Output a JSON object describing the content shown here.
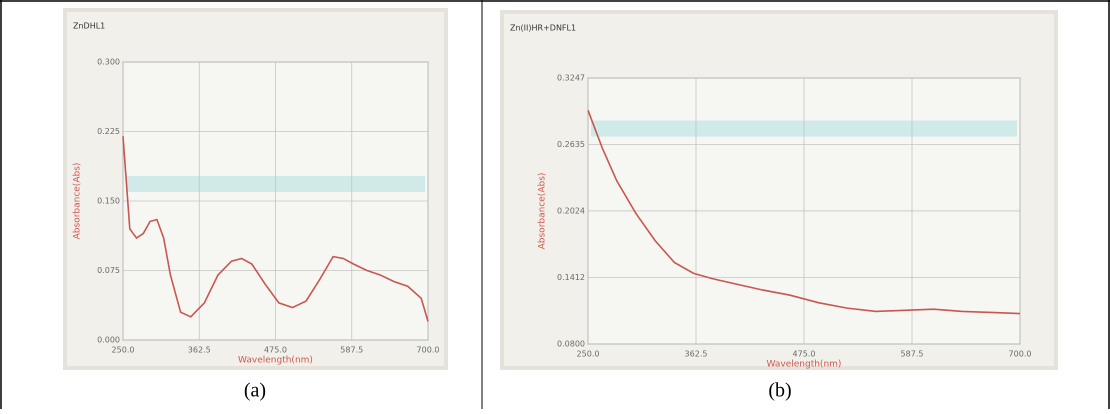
{
  "chart_data": [
    {
      "type": "line",
      "title": "ZnDHL1",
      "xlabel": "Wavelength(nm)",
      "ylabel": "Absorbance(Abs)",
      "caption": "(a)",
      "xlim": [
        250,
        700
      ],
      "ylim": [
        0,
        0.3
      ],
      "grid": true,
      "xticks": [
        {
          "value": 250,
          "label": "250.0"
        },
        {
          "value": 362.5,
          "label": "362.5"
        },
        {
          "value": 475,
          "label": "475.0"
        },
        {
          "value": 587.5,
          "label": "587.5"
        },
        {
          "value": 700,
          "label": "700.0"
        }
      ],
      "yticks": [
        {
          "value": 0,
          "label": "0.000"
        },
        {
          "value": 0.075,
          "label": "0.075"
        },
        {
          "value": 0.15,
          "label": "0.150"
        },
        {
          "value": 0.225,
          "label": "0.225"
        },
        {
          "value": 0.3,
          "label": "0.300"
        }
      ],
      "series": [
        {
          "color": "#c8574f",
          "x": [
            250,
            260,
            270,
            280,
            290,
            300,
            310,
            320,
            335,
            350,
            370,
            390,
            410,
            425,
            440,
            460,
            480,
            500,
            520,
            540,
            560,
            575,
            590,
            610,
            630,
            650,
            670,
            690,
            700
          ],
          "values": [
            0.22,
            0.12,
            0.11,
            0.115,
            0.128,
            0.13,
            0.11,
            0.07,
            0.03,
            0.025,
            0.04,
            0.07,
            0.085,
            0.088,
            0.082,
            0.06,
            0.04,
            0.035,
            0.042,
            0.065,
            0.09,
            0.088,
            0.082,
            0.075,
            0.07,
            0.063,
            0.058,
            0.045,
            0.02
          ]
        }
      ]
    },
    {
      "type": "line",
      "title": "Zn(II)HR+DNFL1",
      "xlabel": "Wavelength(nm)",
      "ylabel": "Absorbance(Abs)",
      "caption": "(b)",
      "xlim": [
        250,
        700
      ],
      "ylim": [
        0.08,
        0.3247
      ],
      "grid": true,
      "xticks": [
        {
          "value": 250,
          "label": "250.0"
        },
        {
          "value": 362.5,
          "label": "362.5"
        },
        {
          "value": 475,
          "label": "475.0"
        },
        {
          "value": 587.5,
          "label": "587.5"
        },
        {
          "value": 700,
          "label": "700.0"
        }
      ],
      "yticks": [
        {
          "value": 0.08,
          "label": "0.0800"
        },
        0.1412,
        0.2024,
        0.2635,
        0.3247
      ],
      "series": [
        {
          "color": "#c8574f",
          "x": [
            250,
            265,
            280,
            300,
            320,
            340,
            360,
            380,
            400,
            430,
            460,
            490,
            520,
            550,
            580,
            610,
            640,
            670,
            700
          ],
          "values": [
            0.295,
            0.26,
            0.23,
            0.2,
            0.175,
            0.155,
            0.145,
            0.14,
            0.136,
            0.13,
            0.125,
            0.118,
            0.113,
            0.11,
            0.111,
            0.112,
            0.11,
            0.109,
            0.108
          ]
        }
      ]
    }
  ]
}
